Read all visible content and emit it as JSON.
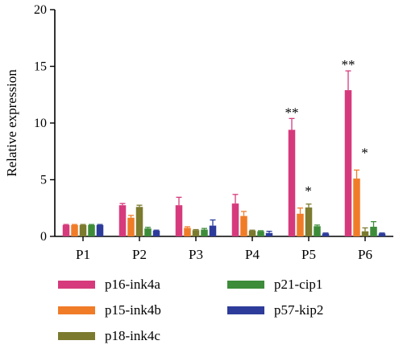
{
  "chart_data": {
    "type": "bar",
    "ylabel": "Relative expression",
    "xlabel": "",
    "ylim": [
      0,
      20
    ],
    "yticks": [
      0,
      5,
      10,
      15,
      20
    ],
    "categories": [
      "P1",
      "P2",
      "P3",
      "P4",
      "P5",
      "P6"
    ],
    "grid": false,
    "legend_placement": "bottom",
    "series": [
      {
        "name": "p16-ink4a",
        "color": "#d63a7c",
        "values": [
          1.0,
          2.75,
          2.75,
          2.9,
          9.4,
          12.9
        ],
        "errors": [
          0.05,
          0.15,
          0.7,
          0.8,
          1.0,
          1.7
        ]
      },
      {
        "name": "p15-ink4b",
        "color": "#f07c28",
        "values": [
          1.0,
          1.65,
          0.75,
          1.8,
          2.0,
          5.1
        ],
        "errors": [
          0.05,
          0.2,
          0.1,
          0.4,
          0.5,
          0.75
        ]
      },
      {
        "name": "p18-ink4c",
        "color": "#7b7a2f",
        "values": [
          1.0,
          2.6,
          0.55,
          0.5,
          2.55,
          0.45
        ],
        "errors": [
          0.05,
          0.15,
          0.05,
          0.05,
          0.3,
          0.3
        ]
      },
      {
        "name": "p21-cip1",
        "color": "#3d8c3a",
        "values": [
          1.0,
          0.7,
          0.6,
          0.45,
          0.9,
          0.85
        ],
        "errors": [
          0.05,
          0.1,
          0.1,
          0.05,
          0.1,
          0.45
        ]
      },
      {
        "name": "p57-kip2",
        "color": "#2d3c9a",
        "values": [
          1.0,
          0.5,
          0.95,
          0.3,
          0.25,
          0.25
        ],
        "errors": [
          0.05,
          0.05,
          0.5,
          0.15,
          0.05,
          0.05
        ]
      }
    ],
    "annotations": [
      {
        "text": "**",
        "category": "P5",
        "series": "p16-ink4a"
      },
      {
        "text": "*",
        "category": "P5",
        "series": "p15-ink4b"
      },
      {
        "text": "**",
        "category": "P6",
        "series": "p16-ink4a"
      },
      {
        "text": "*",
        "category": "P6",
        "series": "p15-ink4b"
      }
    ]
  }
}
